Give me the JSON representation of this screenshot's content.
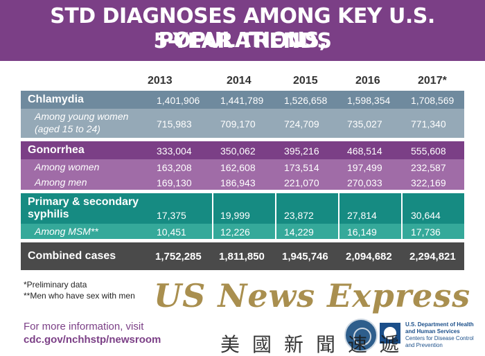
{
  "header": {
    "title_line1": "STD DIAGNOSES AMONG KEY U.S. POPULATIONS,",
    "title_line2": "5-YEAR TRENDS"
  },
  "years": [
    "2013",
    "2014",
    "2015",
    "2016",
    "2017*"
  ],
  "rows": {
    "chlamydia": {
      "label": "Chlamydia",
      "values": [
        "1,401,906",
        "1,441,789",
        "1,526,658",
        "1,598,354",
        "1,708,569"
      ]
    },
    "chlamydia_young_women": {
      "label_line1": "Among young women",
      "label_line2": "(aged 15 to 24)",
      "values": [
        "715,983",
        "709,170",
        "724,709",
        "735,027",
        "771,340"
      ]
    },
    "gonorrhea": {
      "label": "Gonorrhea",
      "values": [
        "333,004",
        "350,062",
        "395,216",
        "468,514",
        "555,608"
      ]
    },
    "gonorrhea_women": {
      "label": "Among women",
      "values": [
        "163,208",
        "162,608",
        "173,514",
        "197,499",
        "232,587"
      ]
    },
    "gonorrhea_men": {
      "label": "Among men",
      "values": [
        "169,130",
        "186,943",
        "221,070",
        "270,033",
        "322,169"
      ]
    },
    "syphilis": {
      "label_line1": "Primary & secondary",
      "label_line2": "syphilis",
      "values": [
        "17,375",
        "19,999",
        "23,872",
        "27,814",
        "30,644"
      ]
    },
    "syphilis_msm": {
      "label": "Among MSM**",
      "values": [
        "10,451",
        "12,226",
        "14,229",
        "16,149",
        "17,736"
      ]
    },
    "combined": {
      "label": "Combined cases",
      "values": [
        "1,752,285",
        "1,811,850",
        "1,945,746",
        "2,094,682",
        "2,294,821"
      ]
    }
  },
  "footnotes": {
    "preliminary": "*Preliminary data",
    "msm": "**Men who have sex with men"
  },
  "more_info": {
    "line1": "For more information, visit",
    "url": "cdc.gov/nchhstp/newsroom"
  },
  "hhs": {
    "dept": "U.S. Department of Health and Human Services",
    "cdc": "Centers for Disease Control and Prevention"
  },
  "watermark": {
    "english": "US News Express",
    "chinese": "美國新聞速遞"
  },
  "colors": {
    "header_purple": "#7b3f86",
    "chlamydia_dark": "#6f8a9e",
    "chlamydia_light": "#95a9b7",
    "gonorrhea_dark": "#7b3f86",
    "gonorrhea_light": "#a06ca7",
    "syphilis_dark": "#168b82",
    "syphilis_light": "#35a99a",
    "combined_dark": "#4a4a4a"
  }
}
